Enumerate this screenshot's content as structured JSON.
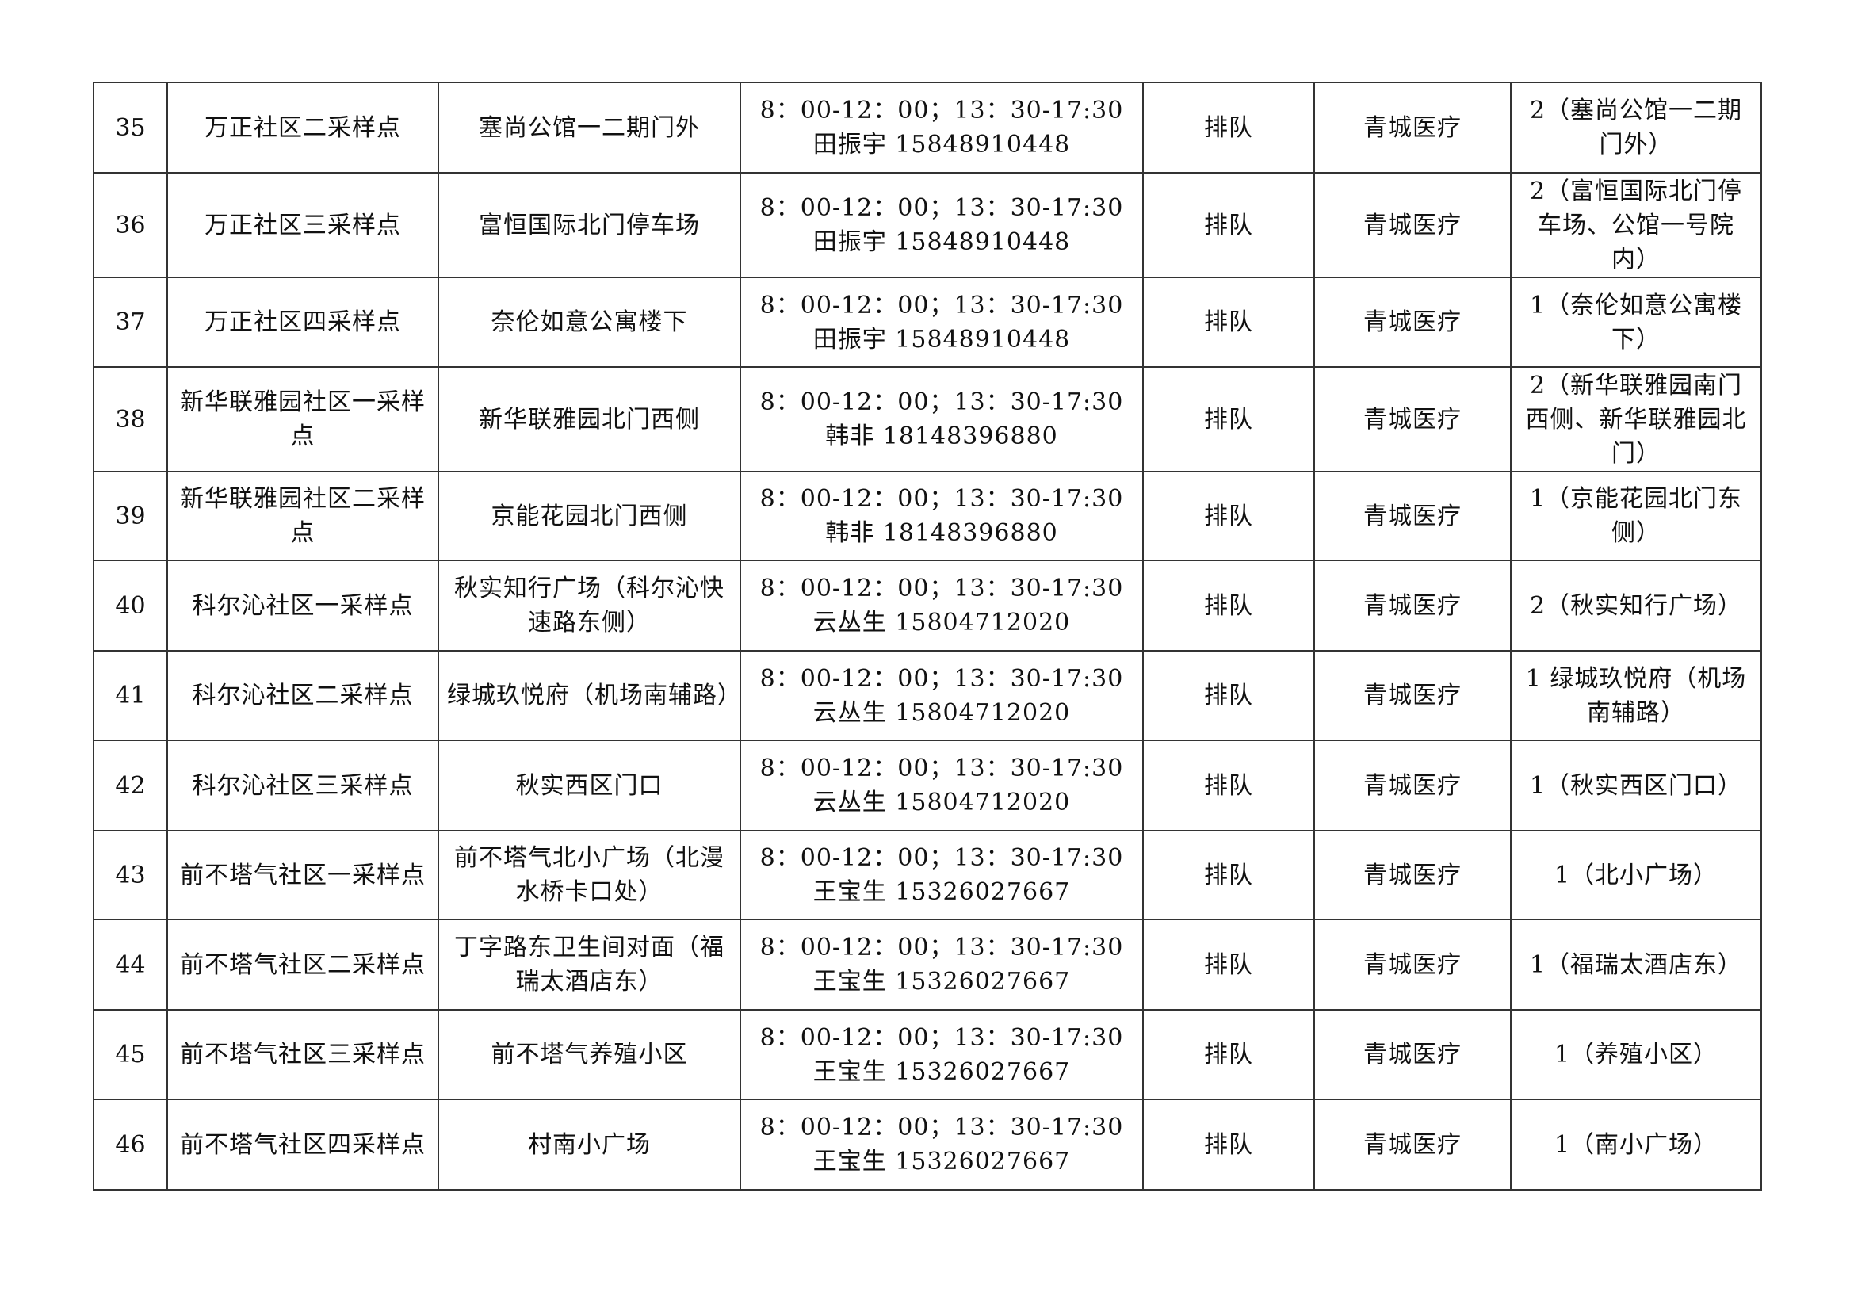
{
  "rows": [
    {
      "no": "35",
      "name": "万正社区二采样点",
      "location": "塞尚公馆一二期门外",
      "time": "8：00-12：00；13：30-17:30",
      "contact": "田振宇 15848910448",
      "mode": "排队",
      "org": "青城医疗",
      "points": "2（塞尚公馆一二期门外）"
    },
    {
      "no": "36",
      "name": "万正社区三采样点",
      "location": "富恒国际北门停车场",
      "time": "8：00-12：00；13：30-17:30",
      "contact": "田振宇 15848910448",
      "mode": "排队",
      "org": "青城医疗",
      "points": "2（富恒国际北门停车场、公馆一号院内）"
    },
    {
      "no": "37",
      "name": "万正社区四采样点",
      "location": "奈伦如意公寓楼下",
      "time": "8：00-12：00；13：30-17:30",
      "contact": "田振宇 15848910448",
      "mode": "排队",
      "org": "青城医疗",
      "points": "1（奈伦如意公寓楼下）"
    },
    {
      "no": "38",
      "name": "新华联雅园社区一采样点",
      "location": "新华联雅园北门西侧",
      "time": "8：00-12：00；13：30-17:30",
      "contact": "韩非 18148396880",
      "mode": "排队",
      "org": "青城医疗",
      "points": "2（新华联雅园南门西侧、新华联雅园北门）"
    },
    {
      "no": "39",
      "name": "新华联雅园社区二采样点",
      "location": "京能花园北门西侧",
      "time": "8：00-12：00；13：30-17:30",
      "contact": "韩非 18148396880",
      "mode": "排队",
      "org": "青城医疗",
      "points": "1（京能花园北门东侧）"
    },
    {
      "no": "40",
      "name": "科尔沁社区一采样点",
      "location": "秋实知行广场（科尔沁快速路东侧）",
      "time": "8：00-12：00；13：30-17:30",
      "contact": "云丛生 15804712020",
      "mode": "排队",
      "org": "青城医疗",
      "points": "2（秋实知行广场）"
    },
    {
      "no": "41",
      "name": "科尔沁社区二采样点",
      "location": "绿城玖悦府（机场南辅路）",
      "time": "8：00-12：00；13：30-17:30",
      "contact": "云丛生 15804712020",
      "mode": "排队",
      "org": "青城医疗",
      "points": "1 绿城玖悦府（机场南辅路）"
    },
    {
      "no": "42",
      "name": "科尔沁社区三采样点",
      "location": "秋实西区门口",
      "time": "8：00-12：00；13：30-17:30",
      "contact": "云丛生 15804712020",
      "mode": "排队",
      "org": "青城医疗",
      "points": "1（秋实西区门口）"
    },
    {
      "no": "43",
      "name": "前不塔气社区一采样点",
      "location": "前不塔气北小广场（北漫水桥卡口处）",
      "time": "8：00-12：00；13：30-17:30",
      "contact": "王宝生 15326027667",
      "mode": "排队",
      "org": "青城医疗",
      "points": "1（北小广场）"
    },
    {
      "no": "44",
      "name": "前不塔气社区二采样点",
      "location": "丁字路东卫生间对面（福瑞太酒店东）",
      "time": "8：00-12：00；13：30-17:30",
      "contact": "王宝生 15326027667",
      "mode": "排队",
      "org": "青城医疗",
      "points": "1（福瑞太酒店东）"
    },
    {
      "no": "45",
      "name": "前不塔气社区三采样点",
      "location": "前不塔气养殖小区",
      "time": "8：00-12：00；13：30-17:30",
      "contact": "王宝生 15326027667",
      "mode": "排队",
      "org": "青城医疗",
      "points": "1（养殖小区）"
    },
    {
      "no": "46",
      "name": "前不塔气社区四采样点",
      "location": "村南小广场",
      "time": "8：00-12：00；13：30-17:30",
      "contact": "王宝生 15326027667",
      "mode": "排队",
      "org": "青城医疗",
      "points": "1（南小广场）"
    }
  ]
}
